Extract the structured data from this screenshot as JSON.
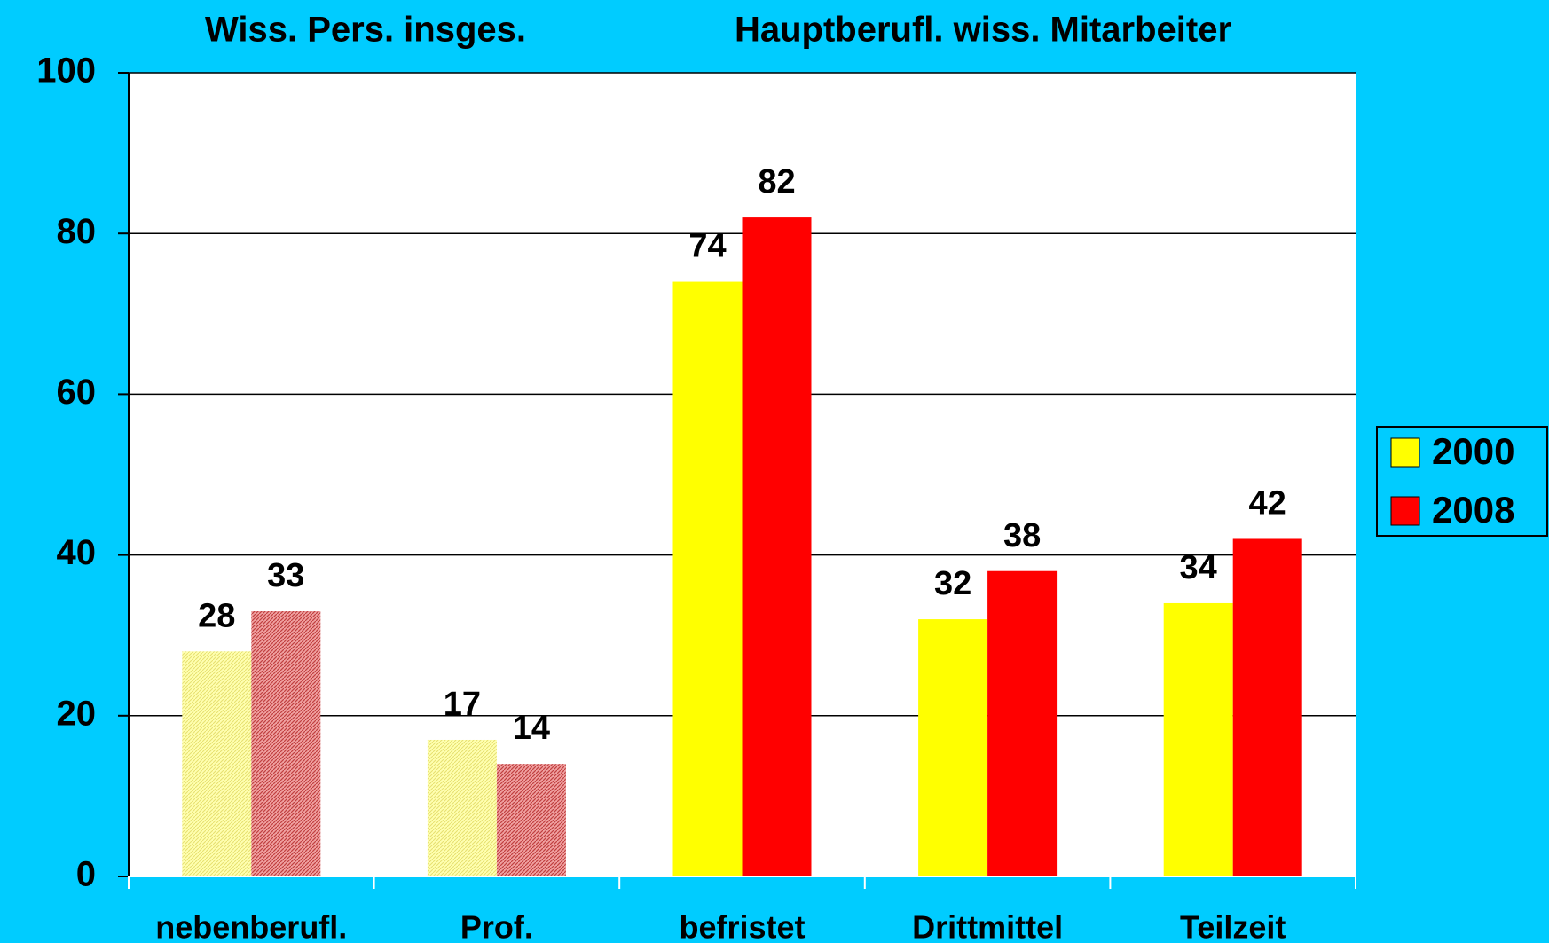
{
  "chart_data": {
    "type": "bar",
    "group_labels": [
      "Wiss. Pers. insges.",
      "Hauptberufl. wiss. Mitarbeiter"
    ],
    "categories": [
      "nebenberufl.",
      "Prof.",
      "befristet",
      "Drittmittel",
      "Teilzeit"
    ],
    "series": [
      {
        "name": "2000",
        "color": "#ffff00",
        "values": [
          28,
          17,
          74,
          32,
          34
        ]
      },
      {
        "name": "2008",
        "color": "#ff0000",
        "values": [
          33,
          14,
          82,
          38,
          42
        ]
      }
    ],
    "hatched": [
      true,
      true,
      false,
      false,
      false
    ],
    "ylim": [
      0,
      100
    ],
    "yticks": [
      0,
      20,
      40,
      60,
      80,
      100
    ],
    "grid": true,
    "legend": "right"
  }
}
